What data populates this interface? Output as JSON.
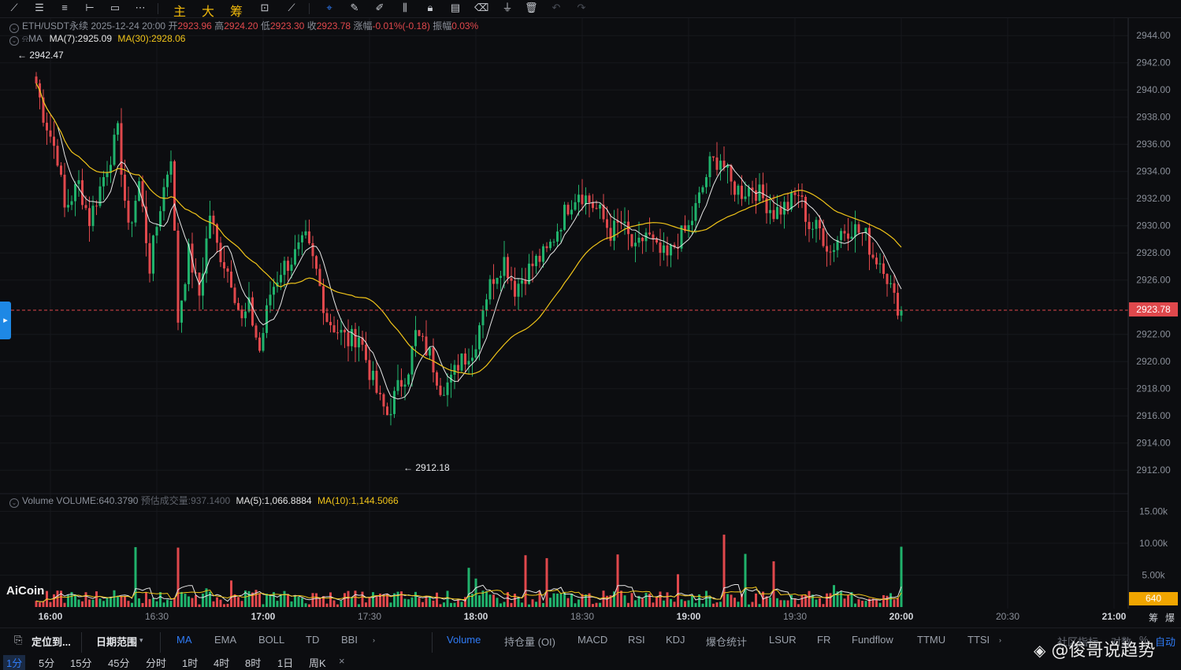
{
  "toolbar": {
    "char_main": "主",
    "char_big": "大",
    "char_chip": "筹"
  },
  "legend": {
    "pair": "ETH/USDT永续",
    "datetime": "2025-12-24 20:00",
    "open_label": "开",
    "open": "2923.96",
    "high_label": "高",
    "high": "2924.20",
    "low_label": "低",
    "low": "2923.30",
    "close_label": "收",
    "close": "2923.78",
    "change_label": "涨幅",
    "change": "-0.01%(-0.18)",
    "amp_label": "振幅",
    "amp": "0.03%",
    "ma_label": "MA",
    "ma7": "MA(7):2925.09",
    "ma30": "MA(30):2928.06"
  },
  "volume_legend": {
    "label": "Volume",
    "volume": "VOLUME:640.3790",
    "est_label": "预估成交量:",
    "est": "937.1400",
    "ma5": "MA(5):1,066.8884",
    "ma10": "MA(10):1,144.5066"
  },
  "annotations": {
    "high_mark": "← 2942.47",
    "low_mark": "← 2912.18"
  },
  "current_price": "2923.78",
  "current_volume": "640",
  "brand": "AiCoin",
  "watermark": "@俊哥说趋势",
  "colors": {
    "up": "#20b26c",
    "down": "#e0484c",
    "ma7": "#e6e6e6",
    "ma30": "#f0c419",
    "accent": "#2f7bf5"
  },
  "chart_data": {
    "type": "candlestick",
    "interval": "1分",
    "y_ticks": [
      "2944.00",
      "2942.00",
      "2940.00",
      "2938.00",
      "2936.00",
      "2934.00",
      "2932.00",
      "2930.00",
      "2928.00",
      "2926.00",
      "2922.00",
      "2920.00",
      "2918.00",
      "2916.00",
      "2914.00",
      "2912.00"
    ],
    "vol_ticks": [
      "15.00k",
      "10.00k",
      "5.00k"
    ],
    "x_ticks": [
      {
        "t": "16:00",
        "bold": true
      },
      {
        "t": "16:30",
        "bold": false
      },
      {
        "t": "17:00",
        "bold": true
      },
      {
        "t": "17:30",
        "bold": false
      },
      {
        "t": "18:00",
        "bold": true
      },
      {
        "t": "18:30",
        "bold": false
      },
      {
        "t": "19:00",
        "bold": true
      },
      {
        "t": "19:30",
        "bold": false
      },
      {
        "t": "20:00",
        "bold": true
      },
      {
        "t": "20:30",
        "bold": false
      },
      {
        "t": "21:00",
        "bold": true
      }
    ],
    "close_path": [
      [
        "15:56",
        2940.5
      ],
      [
        "15:58",
        2938.2
      ],
      [
        "16:02",
        2935.1
      ],
      [
        "16:04",
        2931.2
      ],
      [
        "16:08",
        2933.1
      ],
      [
        "16:11",
        2930.4
      ],
      [
        "16:15",
        2933.6
      ],
      [
        "16:19",
        2936.8
      ],
      [
        "16:22",
        2929.5
      ],
      [
        "16:25",
        2933.2
      ],
      [
        "16:28",
        2927.0
      ],
      [
        "16:31",
        2931.5
      ],
      [
        "16:34",
        2935.3
      ],
      [
        "16:36",
        2923.1
      ],
      [
        "16:39",
        2928.0
      ],
      [
        "16:42",
        2924.9
      ],
      [
        "16:45",
        2930.9
      ],
      [
        "16:47",
        2928.5
      ],
      [
        "16:51",
        2926.1
      ],
      [
        "16:54",
        2922.9
      ],
      [
        "16:56",
        2924.0
      ],
      [
        "16:59",
        2920.8
      ],
      [
        "17:02",
        2925.0
      ],
      [
        "17:05",
        2926.8
      ],
      [
        "17:08",
        2927.5
      ],
      [
        "17:12",
        2928.9
      ],
      [
        "17:15",
        2926.6
      ],
      [
        "17:18",
        2923.2
      ],
      [
        "17:21",
        2922.3
      ],
      [
        "17:24",
        2921.5
      ],
      [
        "17:27",
        2922.0
      ],
      [
        "17:30",
        2919.3
      ],
      [
        "17:33",
        2917.0
      ],
      [
        "17:35",
        2916.1
      ],
      [
        "17:38",
        2918.0
      ],
      [
        "17:41",
        2919.6
      ],
      [
        "17:43",
        2922.0
      ],
      [
        "17:47",
        2920.5
      ],
      [
        "17:50",
        2918.2
      ],
      [
        "17:53",
        2918.5
      ],
      [
        "17:56",
        2920.6
      ],
      [
        "17:59",
        2920.3
      ],
      [
        "18:02",
        2924.2
      ],
      [
        "18:05",
        2926.3
      ],
      [
        "18:08",
        2927.5
      ],
      [
        "18:11",
        2925.4
      ],
      [
        "18:14",
        2926.5
      ],
      [
        "18:17",
        2927.4
      ],
      [
        "18:20",
        2928.0
      ],
      [
        "18:23",
        2929.8
      ],
      [
        "18:26",
        2931.5
      ],
      [
        "18:29",
        2932.6
      ],
      [
        "18:32",
        2931.8
      ],
      [
        "18:35",
        2930.9
      ],
      [
        "18:38",
        2929.5
      ],
      [
        "18:41",
        2930.2
      ],
      [
        "18:45",
        2928.0
      ],
      [
        "18:48",
        2929.5
      ],
      [
        "18:51",
        2928.1
      ],
      [
        "18:54",
        2927.6
      ],
      [
        "18:57",
        2929.0
      ],
      [
        "19:00",
        2929.8
      ],
      [
        "19:03",
        2932.0
      ],
      [
        "19:06",
        2934.5
      ],
      [
        "19:09",
        2935.0
      ],
      [
        "19:12",
        2933.0
      ],
      [
        "19:15",
        2932.5
      ],
      [
        "19:18",
        2932.9
      ],
      [
        "19:21",
        2932.0
      ],
      [
        "19:24",
        2931.0
      ],
      [
        "19:28",
        2931.5
      ],
      [
        "19:31",
        2932.4
      ],
      [
        "19:34",
        2930.0
      ],
      [
        "19:37",
        2929.7
      ],
      [
        "19:40",
        2928.1
      ],
      [
        "19:43",
        2929.6
      ],
      [
        "19:46",
        2929.9
      ],
      [
        "19:50",
        2929.2
      ],
      [
        "19:52",
        2927.8
      ],
      [
        "19:55",
        2927.2
      ],
      [
        "19:58",
        2924.5
      ],
      [
        "20:00",
        2923.78
      ]
    ]
  },
  "bottom_bar": {
    "locate": "定位到...",
    "date_range": "日期范围",
    "main_indicators": [
      "MA",
      "EMA",
      "BOLL",
      "TD",
      "BBI"
    ],
    "sub_indicators": [
      "Volume",
      "持仓量 (OI)",
      "MACD",
      "RSI",
      "KDJ",
      "爆仓统计",
      "LSUR",
      "FR",
      "Fundflow",
      "TTMU",
      "TTSI"
    ],
    "community": "社区指标",
    "compare": "对数",
    "auto": "自动"
  },
  "periods": [
    "1分",
    "5分",
    "15分",
    "45分",
    "分时",
    "1时",
    "4时",
    "8时",
    "1日",
    "周K"
  ],
  "active_period": "1分",
  "right_axis_small": [
    "筹",
    "爆"
  ]
}
